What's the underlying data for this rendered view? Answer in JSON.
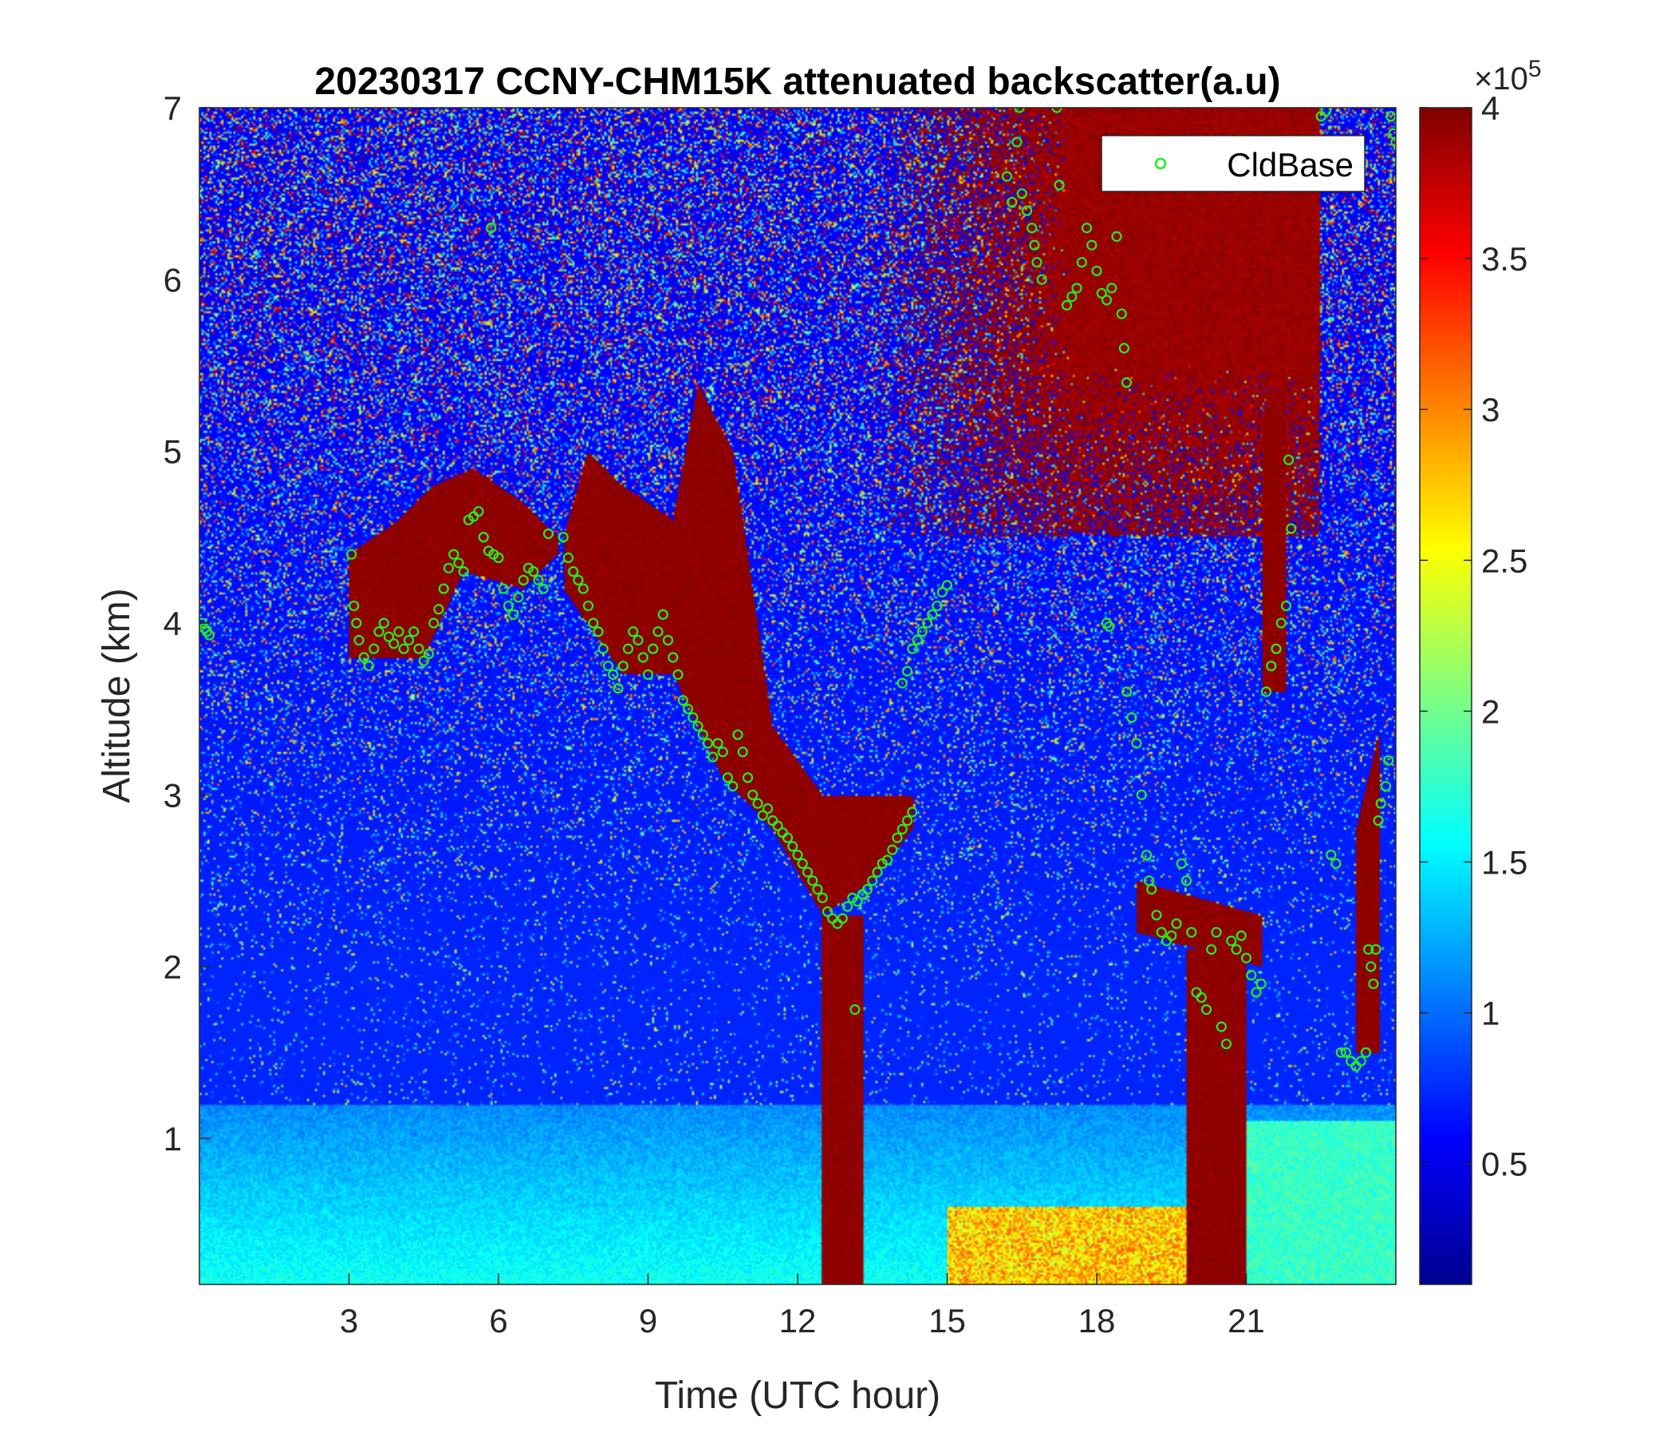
{
  "chart_data": {
    "type": "heatmap",
    "title": "20230317 CCNY-CHM15K attenuated backscatter(a.u)",
    "xlabel": "Time (UTC hour)",
    "ylabel": "Altitude (km)",
    "xlim": [
      0,
      24
    ],
    "ylim": [
      0.15,
      7
    ],
    "x_ticks": [
      3,
      6,
      9,
      12,
      15,
      18,
      21
    ],
    "x_tick_labels": [
      "3",
      "6",
      "9",
      "12",
      "15",
      "18",
      "21"
    ],
    "y_ticks": [
      1,
      2,
      3,
      4,
      5,
      6,
      7
    ],
    "y_tick_labels": [
      "1",
      "2",
      "3",
      "4",
      "5",
      "6",
      "7"
    ],
    "colorbar": {
      "colormap": "jet",
      "range": [
        10000,
        400000
      ],
      "ticks": [
        50000,
        100000,
        150000,
        200000,
        250000,
        300000,
        350000,
        400000
      ],
      "tick_labels": [
        "0.5",
        "1",
        "1.5",
        "2",
        "2.5",
        "3",
        "3.5",
        "4"
      ],
      "exponent_label": "×10",
      "exponent_power": "5"
    },
    "legend": {
      "label": "CldBase",
      "position": "top-right",
      "marker": "circle",
      "color": "#22ee22"
    },
    "grid": false,
    "series": [
      {
        "name": "CldBase",
        "marker_color": "#22ee22",
        "points": [
          [
            0.05,
            4.0
          ],
          [
            0.1,
            3.97
          ],
          [
            0.15,
            3.95
          ],
          [
            0.2,
            3.93
          ],
          [
            3.05,
            4.4
          ],
          [
            3.1,
            4.1
          ],
          [
            3.15,
            4.0
          ],
          [
            3.2,
            3.9
          ],
          [
            3.3,
            3.8
          ],
          [
            3.4,
            3.75
          ],
          [
            3.5,
            3.85
          ],
          [
            3.6,
            3.95
          ],
          [
            3.7,
            4.0
          ],
          [
            3.8,
            3.92
          ],
          [
            3.9,
            3.88
          ],
          [
            4.0,
            3.95
          ],
          [
            4.1,
            3.85
          ],
          [
            4.2,
            3.9
          ],
          [
            4.3,
            3.95
          ],
          [
            4.4,
            3.85
          ],
          [
            4.5,
            3.78
          ],
          [
            4.6,
            3.82
          ],
          [
            4.7,
            4.0
          ],
          [
            4.8,
            4.08
          ],
          [
            4.9,
            4.2
          ],
          [
            5.0,
            4.32
          ],
          [
            5.1,
            4.4
          ],
          [
            5.2,
            4.35
          ],
          [
            5.3,
            4.3
          ],
          [
            5.4,
            4.6
          ],
          [
            5.5,
            4.62
          ],
          [
            5.6,
            4.65
          ],
          [
            5.7,
            4.5
          ],
          [
            5.8,
            4.42
          ],
          [
            5.85,
            6.3
          ],
          [
            5.9,
            4.4
          ],
          [
            6.0,
            4.38
          ],
          [
            6.1,
            4.2
          ],
          [
            6.2,
            4.1
          ],
          [
            6.3,
            4.05
          ],
          [
            6.4,
            4.15
          ],
          [
            6.5,
            4.25
          ],
          [
            6.6,
            4.32
          ],
          [
            6.7,
            4.3
          ],
          [
            6.8,
            4.25
          ],
          [
            6.9,
            4.2
          ],
          [
            7.0,
            4.52
          ],
          [
            7.3,
            4.5
          ],
          [
            7.4,
            4.38
          ],
          [
            7.5,
            4.3
          ],
          [
            7.6,
            4.25
          ],
          [
            7.7,
            4.2
          ],
          [
            7.8,
            4.1
          ],
          [
            7.9,
            4.0
          ],
          [
            8.0,
            3.95
          ],
          [
            8.1,
            3.85
          ],
          [
            8.2,
            3.75
          ],
          [
            8.3,
            3.7
          ],
          [
            8.4,
            3.62
          ],
          [
            8.5,
            3.75
          ],
          [
            8.6,
            3.85
          ],
          [
            8.7,
            3.95
          ],
          [
            8.8,
            3.9
          ],
          [
            8.9,
            3.8
          ],
          [
            9.0,
            3.7
          ],
          [
            9.1,
            3.85
          ],
          [
            9.2,
            3.95
          ],
          [
            9.3,
            4.05
          ],
          [
            9.4,
            3.9
          ],
          [
            9.5,
            3.8
          ],
          [
            9.6,
            3.7
          ],
          [
            9.7,
            3.55
          ],
          [
            9.8,
            3.5
          ],
          [
            9.9,
            3.45
          ],
          [
            10.0,
            3.4
          ],
          [
            10.1,
            3.35
          ],
          [
            10.2,
            3.3
          ],
          [
            10.3,
            3.22
          ],
          [
            10.4,
            3.3
          ],
          [
            10.5,
            3.25
          ],
          [
            10.6,
            3.1
          ],
          [
            10.7,
            3.05
          ],
          [
            10.8,
            3.35
          ],
          [
            10.9,
            3.25
          ],
          [
            11.0,
            3.1
          ],
          [
            11.1,
            3.0
          ],
          [
            11.2,
            2.95
          ],
          [
            11.3,
            2.88
          ],
          [
            11.4,
            2.92
          ],
          [
            11.5,
            2.85
          ],
          [
            11.6,
            2.82
          ],
          [
            11.7,
            2.78
          ],
          [
            11.8,
            2.75
          ],
          [
            11.9,
            2.7
          ],
          [
            12.0,
            2.65
          ],
          [
            12.1,
            2.6
          ],
          [
            12.2,
            2.55
          ],
          [
            12.3,
            2.5
          ],
          [
            12.4,
            2.45
          ],
          [
            12.5,
            2.4
          ],
          [
            12.6,
            2.32
          ],
          [
            12.7,
            2.28
          ],
          [
            12.8,
            2.25
          ],
          [
            12.9,
            2.28
          ],
          [
            13.0,
            2.35
          ],
          [
            13.1,
            2.4
          ],
          [
            13.15,
            1.75
          ],
          [
            13.2,
            2.38
          ],
          [
            13.3,
            2.42
          ],
          [
            13.4,
            2.45
          ],
          [
            13.5,
            2.5
          ],
          [
            13.6,
            2.55
          ],
          [
            13.7,
            2.6
          ],
          [
            13.8,
            2.62
          ],
          [
            13.9,
            2.68
          ],
          [
            14.0,
            2.75
          ],
          [
            14.1,
            2.8
          ],
          [
            14.2,
            2.85
          ],
          [
            14.3,
            2.9
          ],
          [
            14.1,
            3.65
          ],
          [
            14.2,
            3.72
          ],
          [
            14.3,
            3.85
          ],
          [
            14.4,
            3.9
          ],
          [
            14.5,
            3.95
          ],
          [
            14.6,
            4.0
          ],
          [
            14.7,
            4.05
          ],
          [
            14.8,
            4.1
          ],
          [
            14.9,
            4.18
          ],
          [
            15.0,
            4.22
          ],
          [
            16.2,
            6.6
          ],
          [
            16.3,
            6.45
          ],
          [
            16.4,
            6.8
          ],
          [
            16.45,
            7.0
          ],
          [
            16.5,
            6.5
          ],
          [
            16.6,
            6.4
          ],
          [
            16.7,
            6.3
          ],
          [
            16.75,
            6.2
          ],
          [
            16.8,
            6.1
          ],
          [
            16.9,
            6.0
          ],
          [
            17.2,
            7.0
          ],
          [
            17.25,
            6.55
          ],
          [
            17.4,
            5.85
          ],
          [
            17.5,
            5.9
          ],
          [
            17.6,
            5.95
          ],
          [
            17.7,
            6.1
          ],
          [
            17.8,
            6.3
          ],
          [
            17.9,
            6.2
          ],
          [
            18.0,
            6.05
          ],
          [
            18.1,
            5.92
          ],
          [
            18.2,
            5.88
          ],
          [
            18.3,
            5.95
          ],
          [
            18.4,
            6.25
          ],
          [
            18.5,
            5.8
          ],
          [
            18.55,
            5.6
          ],
          [
            18.6,
            5.4
          ],
          [
            18.2,
            4.0
          ],
          [
            18.25,
            3.98
          ],
          [
            18.6,
            3.6
          ],
          [
            18.7,
            3.45
          ],
          [
            18.8,
            3.3
          ],
          [
            18.9,
            3.0
          ],
          [
            19.0,
            2.65
          ],
          [
            19.05,
            2.5
          ],
          [
            19.1,
            2.45
          ],
          [
            19.2,
            2.3
          ],
          [
            19.3,
            2.2
          ],
          [
            19.4,
            2.15
          ],
          [
            19.5,
            2.18
          ],
          [
            19.6,
            2.25
          ],
          [
            19.7,
            2.6
          ],
          [
            19.8,
            2.5
          ],
          [
            19.9,
            2.2
          ],
          [
            20.0,
            1.85
          ],
          [
            20.1,
            1.82
          ],
          [
            20.2,
            1.75
          ],
          [
            20.3,
            2.1
          ],
          [
            20.4,
            2.2
          ],
          [
            20.5,
            1.65
          ],
          [
            20.6,
            1.55
          ],
          [
            20.7,
            2.15
          ],
          [
            20.8,
            2.1
          ],
          [
            20.9,
            2.18
          ],
          [
            21.0,
            2.05
          ],
          [
            21.1,
            1.95
          ],
          [
            21.2,
            1.85
          ],
          [
            21.3,
            1.9
          ],
          [
            21.4,
            3.6
          ],
          [
            21.5,
            3.75
          ],
          [
            21.6,
            3.85
          ],
          [
            21.7,
            4.0
          ],
          [
            21.8,
            4.1
          ],
          [
            21.85,
            4.95
          ],
          [
            21.9,
            4.55
          ],
          [
            22.5,
            6.95
          ],
          [
            22.6,
            6.98
          ],
          [
            22.7,
            2.65
          ],
          [
            22.8,
            2.6
          ],
          [
            22.9,
            1.5
          ],
          [
            23.0,
            1.5
          ],
          [
            23.1,
            1.45
          ],
          [
            23.2,
            1.42
          ],
          [
            23.3,
            1.45
          ],
          [
            23.4,
            1.5
          ],
          [
            23.45,
            2.1
          ],
          [
            23.5,
            2.0
          ],
          [
            23.55,
            1.9
          ],
          [
            23.6,
            2.1
          ],
          [
            23.65,
            2.85
          ],
          [
            23.7,
            2.95
          ],
          [
            23.8,
            3.05
          ],
          [
            23.85,
            3.2
          ],
          [
            23.9,
            6.95
          ],
          [
            23.95,
            6.85
          ],
          [
            24.0,
            6.8
          ]
        ]
      }
    ]
  }
}
